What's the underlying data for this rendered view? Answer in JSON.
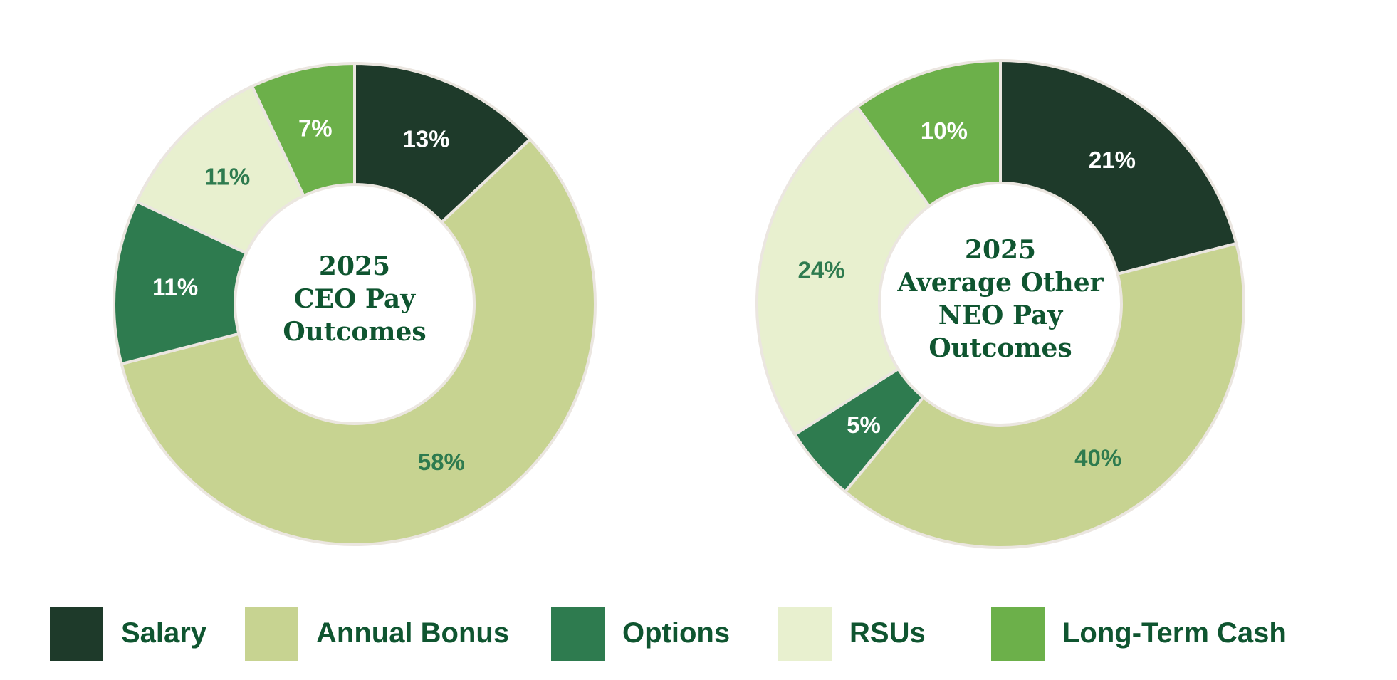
{
  "colors": {
    "salary": "#1e3a2a",
    "annual_bonus": "#c7d391",
    "options": "#2e7b4f",
    "rsus": "#e8f0cf",
    "long_term_cash": "#6cb04a",
    "outline": "#ebe6e0",
    "title_text": "#0f5530",
    "dark_label": "#ffffff",
    "light_label": "#2e7b4f"
  },
  "chart_data": [
    {
      "type": "pie",
      "variant": "donut",
      "title": "2025 CEO Pay Outcomes",
      "title_lines": [
        "2025",
        "CEO Pay",
        "Outcomes"
      ],
      "categories": [
        "Salary",
        "Annual Bonus",
        "Options",
        "RSUs",
        "Long-Term Cash"
      ],
      "values": [
        13,
        58,
        11,
        11,
        7
      ],
      "labels": [
        "13%",
        "58%",
        "11%",
        "11%",
        "7%"
      ],
      "unit": "%"
    },
    {
      "type": "pie",
      "variant": "donut",
      "title": "2025 Average Other NEO Pay Outcomes",
      "title_lines": [
        "2025",
        "Average Other",
        "NEO Pay",
        "Outcomes"
      ],
      "categories": [
        "Salary",
        "Annual Bonus",
        "Options",
        "RSUs",
        "Long-Term Cash"
      ],
      "values": [
        21,
        40,
        5,
        24,
        10
      ],
      "labels": [
        "21%",
        "40%",
        "5%",
        "24%",
        "10%"
      ],
      "unit": "%"
    }
  ],
  "legend": {
    "placement": "bottom",
    "items": [
      {
        "label": "Salary",
        "color_key": "salary"
      },
      {
        "label": "Annual Bonus",
        "color_key": "annual_bonus"
      },
      {
        "label": "Options",
        "color_key": "options"
      },
      {
        "label": "RSUs",
        "color_key": "rsus"
      },
      {
        "label": "Long-Term Cash",
        "color_key": "long_term_cash"
      }
    ]
  }
}
